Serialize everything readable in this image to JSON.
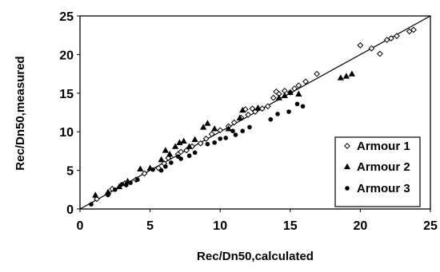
{
  "chart_data": {
    "type": "scatter",
    "xlabel": "Rec/Dn50,calculated",
    "ylabel": "Rec/Dn50,measured",
    "xlim": [
      0,
      25
    ],
    "ylim": [
      0,
      25
    ],
    "xticks": [
      "0",
      "5",
      "10",
      "15",
      "20",
      "25"
    ],
    "yticks": [
      "0",
      "5",
      "10",
      "15",
      "20",
      "25"
    ],
    "grid": false,
    "legend_position": "bottom-right",
    "reference_line": "y = x",
    "series": [
      {
        "name": "Armour 1",
        "marker": "open-diamond",
        "points": [
          [
            1.2,
            1.3
          ],
          [
            2.3,
            2.6
          ],
          [
            3.2,
            3.3
          ],
          [
            4.0,
            3.8
          ],
          [
            4.6,
            4.6
          ],
          [
            5.6,
            5.3
          ],
          [
            6.0,
            5.9
          ],
          [
            6.3,
            6.6
          ],
          [
            7.0,
            7.1
          ],
          [
            7.6,
            7.6
          ],
          [
            8.0,
            8.1
          ],
          [
            8.6,
            8.5
          ],
          [
            9.0,
            9.1
          ],
          [
            9.4,
            9.7
          ],
          [
            10.0,
            10.2
          ],
          [
            10.6,
            10.7
          ],
          [
            11.0,
            11.2
          ],
          [
            11.5,
            11.8
          ],
          [
            12.0,
            12.2
          ],
          [
            12.5,
            12.6
          ],
          [
            13.0,
            13.0
          ],
          [
            13.4,
            13.3
          ],
          [
            13.8,
            14.4
          ],
          [
            14.2,
            14.9
          ],
          [
            14.6,
            15.3
          ],
          [
            15.0,
            15.1
          ],
          [
            15.6,
            16.0
          ],
          [
            16.1,
            16.5
          ],
          [
            16.9,
            17.5
          ],
          [
            20.0,
            21.2
          ],
          [
            20.8,
            20.8
          ],
          [
            21.4,
            20.1
          ],
          [
            21.9,
            21.9
          ],
          [
            22.2,
            22.1
          ],
          [
            22.6,
            22.4
          ],
          [
            23.5,
            23.0
          ],
          [
            23.8,
            23.2
          ],
          [
            11.8,
            12.9
          ],
          [
            12.3,
            13.0
          ],
          [
            14.0,
            15.2
          ],
          [
            15.3,
            15.6
          ],
          [
            7.2,
            7.4
          ]
        ]
      },
      {
        "name": "Armour 2",
        "marker": "filled-triangle",
        "points": [
          [
            1.1,
            1.8
          ],
          [
            2.0,
            2.2
          ],
          [
            2.8,
            2.9
          ],
          [
            3.4,
            3.6
          ],
          [
            4.3,
            5.2
          ],
          [
            5.0,
            5.3
          ],
          [
            5.8,
            6.4
          ],
          [
            6.4,
            7.1
          ],
          [
            6.8,
            8.1
          ],
          [
            7.1,
            8.6
          ],
          [
            7.4,
            8.8
          ],
          [
            7.8,
            8.1
          ],
          [
            8.8,
            10.6
          ],
          [
            9.1,
            11.1
          ],
          [
            9.6,
            10.4
          ],
          [
            10.6,
            10.4
          ],
          [
            11.4,
            11.8
          ],
          [
            11.6,
            12.8
          ],
          [
            12.7,
            13.1
          ],
          [
            14.2,
            14.4
          ],
          [
            14.6,
            14.7
          ],
          [
            15.0,
            15.1
          ],
          [
            15.6,
            14.9
          ],
          [
            18.6,
            17.0
          ],
          [
            19.0,
            17.2
          ],
          [
            19.4,
            17.5
          ],
          [
            8.2,
            9.0
          ],
          [
            6.1,
            7.6
          ]
        ]
      },
      {
        "name": "Armour 3",
        "marker": "filled-circle",
        "points": [
          [
            0.8,
            0.6
          ],
          [
            2.0,
            1.8
          ],
          [
            2.5,
            2.5
          ],
          [
            3.0,
            3.2
          ],
          [
            3.6,
            3.4
          ],
          [
            4.1,
            3.8
          ],
          [
            5.8,
            5.0
          ],
          [
            6.1,
            5.5
          ],
          [
            6.5,
            6.0
          ],
          [
            7.2,
            6.5
          ],
          [
            7.8,
            6.9
          ],
          [
            8.2,
            7.3
          ],
          [
            9.1,
            8.4
          ],
          [
            9.6,
            8.6
          ],
          [
            10.0,
            9.1
          ],
          [
            10.4,
            9.2
          ],
          [
            11.1,
            9.6
          ],
          [
            11.6,
            10.1
          ],
          [
            12.1,
            10.6
          ],
          [
            13.6,
            11.6
          ],
          [
            14.1,
            12.3
          ],
          [
            14.9,
            12.6
          ],
          [
            15.5,
            13.6
          ],
          [
            15.9,
            13.3
          ],
          [
            10.9,
            10.1
          ],
          [
            7.0,
            6.8
          ],
          [
            5.2,
            5.1
          ],
          [
            3.3,
            3.1
          ]
        ]
      }
    ]
  }
}
